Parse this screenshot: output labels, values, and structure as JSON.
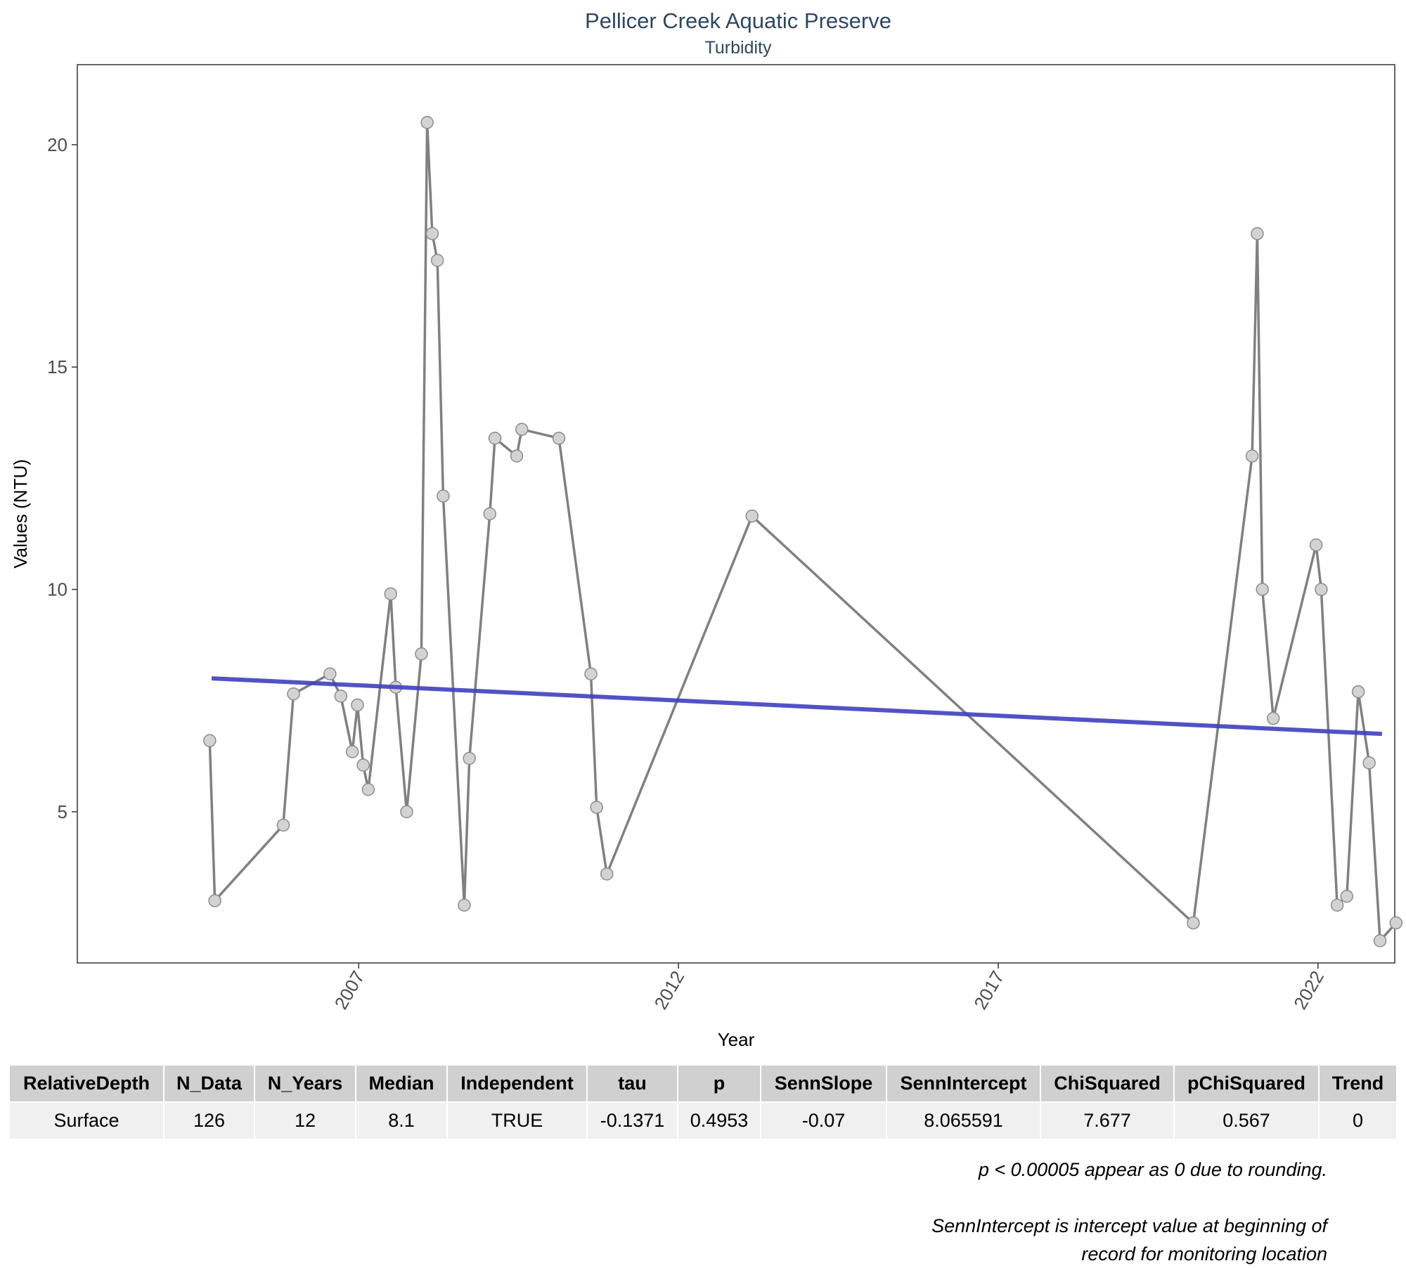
{
  "chart_data": {
    "type": "line",
    "title": "Pellicer Creek Aquatic Preserve",
    "subtitle": "Turbidity",
    "xlabel": "Year",
    "ylabel": "Values (NTU)",
    "xlim": [
      2002.6,
      2023.2
    ],
    "ylim": [
      1.6,
      21.8
    ],
    "x_ticks": [
      2007,
      2012,
      2017,
      2022
    ],
    "y_ticks": [
      5,
      10,
      15,
      20
    ],
    "grid": false,
    "series": [
      {
        "values": [
          {
            "x": 2004.67,
            "y": 6.6
          },
          {
            "x": 2004.75,
            "y": 3.0
          },
          {
            "x": 2005.82,
            "y": 4.7
          },
          {
            "x": 2005.98,
            "y": 7.65
          },
          {
            "x": 2006.55,
            "y": 8.1
          },
          {
            "x": 2006.72,
            "y": 7.6
          },
          {
            "x": 2006.9,
            "y": 6.35
          },
          {
            "x": 2006.98,
            "y": 7.4
          },
          {
            "x": 2007.07,
            "y": 6.05
          },
          {
            "x": 2007.15,
            "y": 5.5
          },
          {
            "x": 2007.5,
            "y": 9.9
          },
          {
            "x": 2007.58,
            "y": 7.8
          },
          {
            "x": 2007.75,
            "y": 5.0
          },
          {
            "x": 2007.98,
            "y": 8.55
          },
          {
            "x": 2008.07,
            "y": 20.5
          },
          {
            "x": 2008.15,
            "y": 18.0
          },
          {
            "x": 2008.23,
            "y": 17.4
          },
          {
            "x": 2008.32,
            "y": 12.1
          },
          {
            "x": 2008.65,
            "y": 2.9
          },
          {
            "x": 2008.73,
            "y": 6.2
          },
          {
            "x": 2009.05,
            "y": 11.7
          },
          {
            "x": 2009.13,
            "y": 13.4
          },
          {
            "x": 2009.47,
            "y": 13.0
          },
          {
            "x": 2009.55,
            "y": 13.6
          },
          {
            "x": 2010.13,
            "y": 13.4
          },
          {
            "x": 2010.63,
            "y": 8.1
          },
          {
            "x": 2010.72,
            "y": 5.1
          },
          {
            "x": 2010.88,
            "y": 3.6
          },
          {
            "x": 2013.15,
            "y": 11.65
          },
          {
            "x": 2020.05,
            "y": 2.5
          },
          {
            "x": 2020.97,
            "y": 13.0
          },
          {
            "x": 2021.05,
            "y": 18.0
          },
          {
            "x": 2021.13,
            "y": 10.0
          },
          {
            "x": 2021.3,
            "y": 7.1
          },
          {
            "x": 2021.97,
            "y": 11.0
          },
          {
            "x": 2022.05,
            "y": 10.0
          },
          {
            "x": 2022.3,
            "y": 2.9
          },
          {
            "x": 2022.45,
            "y": 3.1
          },
          {
            "x": 2022.63,
            "y": 7.7
          },
          {
            "x": 2022.8,
            "y": 6.1
          },
          {
            "x": 2022.97,
            "y": 2.1
          },
          {
            "x": 2023.22,
            "y": 2.5
          }
        ]
      }
    ],
    "trend_line": {
      "x": [
        2004.7,
        2023.0
      ],
      "y": [
        8.0,
        6.75
      ]
    },
    "colors": {
      "data_line": "#808080",
      "data_point_fill": "#d3d3d3",
      "data_point_stroke": "#8c8c8c",
      "trend_line": "#3f3fbf",
      "title": "#2c4763"
    }
  },
  "table": {
    "headers": [
      "RelativeDepth",
      "N_Data",
      "N_Years",
      "Median",
      "Independent",
      "tau",
      "p",
      "SennSlope",
      "SennIntercept",
      "ChiSquared",
      "pChiSquared",
      "Trend"
    ],
    "rows": [
      [
        "Surface",
        "126",
        "12",
        "8.1",
        "TRUE",
        "-0.1371",
        "0.4953",
        "-0.07",
        "8.065591",
        "7.677",
        "0.567",
        "0"
      ]
    ]
  },
  "footnotes": {
    "note1": "p < 0.00005 appear as 0 due to rounding.",
    "note2_line1": "SennIntercept is intercept value at beginning of",
    "note2_line2": "record for monitoring location"
  }
}
